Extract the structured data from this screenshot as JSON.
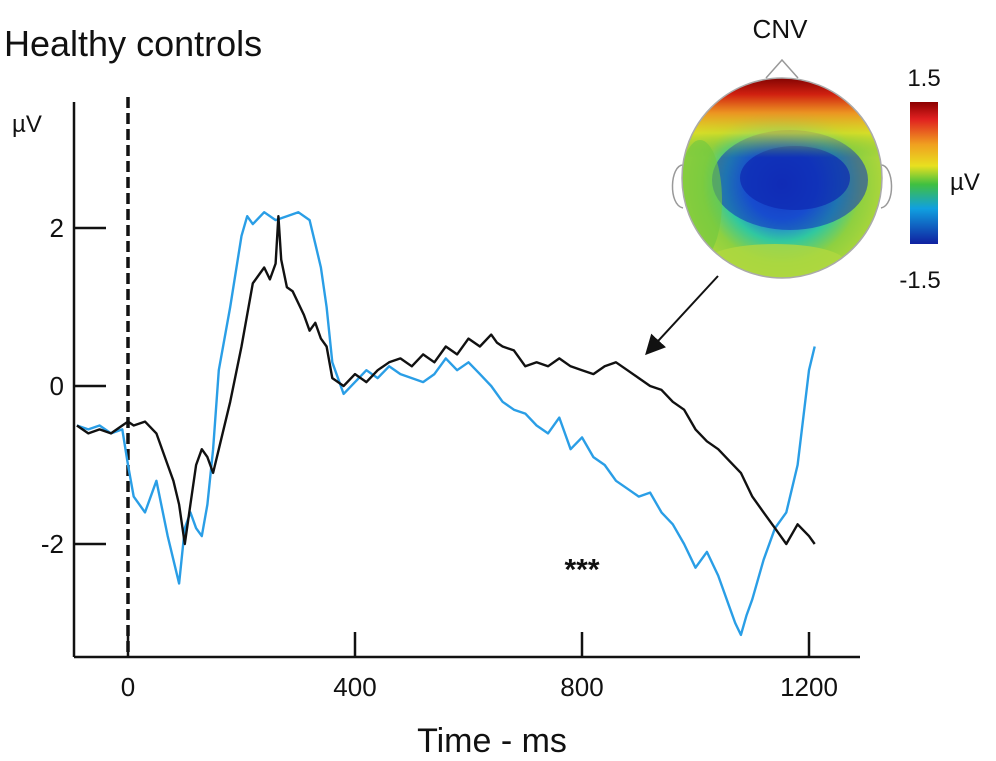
{
  "chart_data": {
    "type": "line",
    "title": "Healthy controls",
    "xlabel": "Time - ms",
    "ylabel": "µV",
    "xlim": [
      -100,
      1280
    ],
    "ylim": [
      -3.3,
      3.4
    ],
    "x_ticks": [
      0,
      400,
      800,
      1200
    ],
    "y_ticks": [
      2,
      0,
      -2
    ],
    "stimulus_line_x": 0,
    "annotation": "***",
    "annotation_at": [
      800,
      -2.45
    ],
    "colors": {
      "black_series": "#111111",
      "blue_series": "#2a9ee6"
    },
    "series": [
      {
        "color": "#111111",
        "x": [
          -90,
          -70,
          -50,
          -30,
          -10,
          0,
          10,
          30,
          50,
          70,
          80,
          90,
          100,
          110,
          120,
          130,
          140,
          150,
          160,
          180,
          200,
          220,
          240,
          250,
          260,
          265,
          270,
          280,
          290,
          300,
          310,
          320,
          330,
          340,
          350,
          360,
          380,
          400,
          420,
          440,
          460,
          480,
          500,
          520,
          540,
          560,
          580,
          600,
          620,
          640,
          650,
          660,
          680,
          700,
          720,
          740,
          760,
          780,
          800,
          820,
          840,
          860,
          880,
          900,
          920,
          940,
          960,
          980,
          1000,
          1020,
          1040,
          1060,
          1080,
          1100,
          1120,
          1140,
          1160,
          1180,
          1200,
          1210
        ],
        "y": [
          -0.5,
          -0.6,
          -0.55,
          -0.6,
          -0.5,
          -0.45,
          -0.5,
          -0.45,
          -0.6,
          -1.0,
          -1.2,
          -1.5,
          -2.0,
          -1.5,
          -1.0,
          -0.8,
          -0.9,
          -1.1,
          -0.8,
          -0.2,
          0.5,
          1.3,
          1.5,
          1.35,
          1.55,
          2.15,
          1.6,
          1.25,
          1.2,
          1.05,
          0.9,
          0.7,
          0.8,
          0.6,
          0.5,
          0.1,
          0.0,
          0.15,
          0.05,
          0.2,
          0.3,
          0.35,
          0.25,
          0.4,
          0.3,
          0.5,
          0.4,
          0.6,
          0.5,
          0.65,
          0.55,
          0.5,
          0.45,
          0.25,
          0.3,
          0.25,
          0.35,
          0.25,
          0.2,
          0.15,
          0.25,
          0.3,
          0.2,
          0.1,
          0.0,
          -0.05,
          -0.2,
          -0.3,
          -0.55,
          -0.7,
          -0.8,
          -0.95,
          -1.1,
          -1.4,
          -1.6,
          -1.8,
          -2.0,
          -1.75,
          -1.9,
          -2.0
        ]
      },
      {
        "color": "#2a9ee6",
        "x": [
          -90,
          -70,
          -50,
          -30,
          -10,
          0,
          10,
          30,
          50,
          70,
          80,
          90,
          100,
          110,
          120,
          130,
          140,
          150,
          160,
          180,
          200,
          210,
          220,
          240,
          260,
          280,
          300,
          320,
          330,
          340,
          350,
          360,
          380,
          400,
          420,
          440,
          460,
          480,
          500,
          520,
          540,
          560,
          580,
          600,
          620,
          640,
          660,
          680,
          700,
          720,
          740,
          760,
          780,
          800,
          820,
          840,
          860,
          880,
          900,
          920,
          940,
          960,
          980,
          1000,
          1020,
          1040,
          1060,
          1070,
          1080,
          1090,
          1100,
          1120,
          1140,
          1160,
          1180,
          1200,
          1210
        ],
        "y": [
          -0.5,
          -0.55,
          -0.5,
          -0.6,
          -0.55,
          -1.0,
          -1.4,
          -1.6,
          -1.2,
          -1.9,
          -2.2,
          -2.5,
          -1.8,
          -1.6,
          -1.8,
          -1.9,
          -1.5,
          -0.8,
          0.2,
          1.0,
          1.9,
          2.15,
          2.05,
          2.2,
          2.1,
          2.15,
          2.2,
          2.1,
          1.8,
          1.5,
          1.0,
          0.3,
          -0.1,
          0.05,
          0.2,
          0.1,
          0.25,
          0.15,
          0.1,
          0.05,
          0.15,
          0.35,
          0.2,
          0.3,
          0.15,
          0.0,
          -0.2,
          -0.3,
          -0.35,
          -0.5,
          -0.6,
          -0.4,
          -0.8,
          -0.65,
          -0.9,
          -1.0,
          -1.2,
          -1.3,
          -1.4,
          -1.35,
          -1.6,
          -1.75,
          -2.0,
          -2.3,
          -2.1,
          -2.4,
          -2.8,
          -3.0,
          -3.15,
          -2.9,
          -2.7,
          -2.2,
          -1.8,
          -1.6,
          -1.0,
          0.2,
          0.5
        ]
      }
    ]
  },
  "topomap": {
    "title": "CNV",
    "colorbar_max": "1.5",
    "colorbar_min": "-1.5",
    "colorbar_unit": "µV",
    "arrow_target_x": 930,
    "arrow_target_y": 0.2
  }
}
